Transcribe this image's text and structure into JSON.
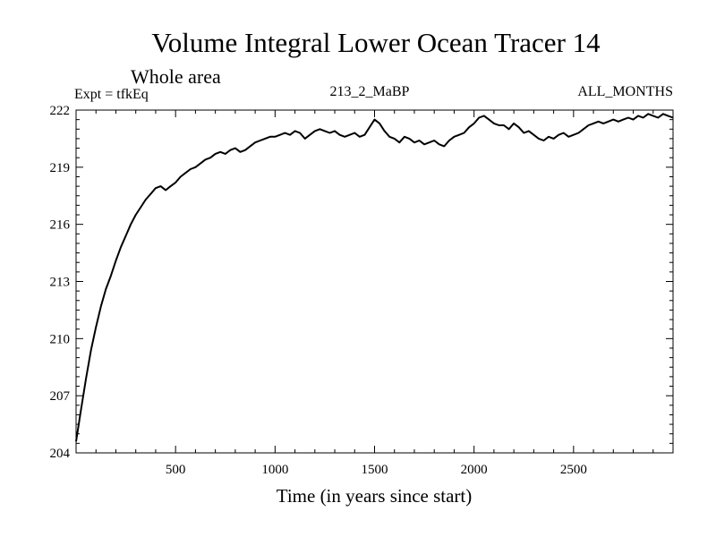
{
  "chart_data": {
    "type": "line",
    "title": "Volume Integral Lower Ocean Tracer 14",
    "subtitle": "Whole area",
    "header_left": "Expt = tfkEq",
    "header_center": "213_2_MaBP",
    "header_right": "ALL_MONTHS",
    "xlabel": "Time (in years since start)",
    "ylabel": "",
    "xlim": [
      0,
      3000
    ],
    "ylim": [
      204,
      222
    ],
    "x_ticks": [
      500,
      1000,
      1500,
      2000,
      2500
    ],
    "y_ticks": [
      204,
      207,
      210,
      213,
      216,
      219,
      222
    ],
    "grid": false,
    "series": [
      {
        "color": "#000000",
        "x": [
          0,
          25,
          50,
          75,
          100,
          125,
          150,
          175,
          200,
          225,
          250,
          275,
          300,
          325,
          350,
          375,
          400,
          425,
          450,
          475,
          500,
          525,
          550,
          575,
          600,
          625,
          650,
          675,
          700,
          725,
          750,
          775,
          800,
          825,
          850,
          875,
          900,
          925,
          950,
          975,
          1000,
          1025,
          1050,
          1075,
          1100,
          1125,
          1150,
          1175,
          1200,
          1225,
          1250,
          1275,
          1300,
          1325,
          1350,
          1375,
          1400,
          1425,
          1450,
          1475,
          1500,
          1525,
          1550,
          1575,
          1600,
          1625,
          1650,
          1675,
          1700,
          1725,
          1750,
          1775,
          1800,
          1825,
          1850,
          1875,
          1900,
          1925,
          1950,
          1975,
          2000,
          2025,
          2050,
          2075,
          2100,
          2125,
          2150,
          2175,
          2200,
          2225,
          2250,
          2275,
          2300,
          2325,
          2350,
          2375,
          2400,
          2425,
          2450,
          2475,
          2500,
          2525,
          2550,
          2575,
          2600,
          2625,
          2650,
          2675,
          2700,
          2725,
          2750,
          2775,
          2800,
          2825,
          2850,
          2875,
          2900,
          2925,
          2950,
          2975,
          3000
        ],
        "y": [
          204.6,
          206.3,
          207.9,
          209.4,
          210.6,
          211.7,
          212.6,
          213.3,
          214.1,
          214.8,
          215.4,
          216.0,
          216.5,
          216.9,
          217.3,
          217.6,
          217.9,
          218.0,
          217.8,
          218.0,
          218.2,
          218.5,
          218.7,
          218.9,
          219.0,
          219.2,
          219.4,
          219.5,
          219.7,
          219.8,
          219.7,
          219.9,
          220.0,
          219.8,
          219.9,
          220.1,
          220.3,
          220.4,
          220.5,
          220.6,
          220.6,
          220.7,
          220.8,
          220.7,
          220.9,
          220.8,
          220.5,
          220.7,
          220.9,
          221.0,
          220.9,
          220.8,
          220.9,
          220.7,
          220.6,
          220.7,
          220.8,
          220.6,
          220.7,
          221.1,
          221.5,
          221.3,
          220.9,
          220.6,
          220.5,
          220.3,
          220.6,
          220.5,
          220.3,
          220.4,
          220.2,
          220.3,
          220.4,
          220.2,
          220.1,
          220.4,
          220.6,
          220.7,
          220.8,
          221.1,
          221.3,
          221.6,
          221.7,
          221.5,
          221.3,
          221.2,
          221.2,
          221.0,
          221.3,
          221.1,
          220.8,
          220.9,
          220.7,
          220.5,
          220.4,
          220.6,
          220.5,
          220.7,
          220.8,
          220.6,
          220.7,
          220.8,
          221.0,
          221.2,
          221.3,
          221.4,
          221.3,
          221.4,
          221.5,
          221.4,
          221.5,
          221.6,
          221.5,
          221.7,
          221.6,
          221.8,
          221.7,
          221.6,
          221.8,
          221.7,
          221.6
        ]
      }
    ]
  }
}
